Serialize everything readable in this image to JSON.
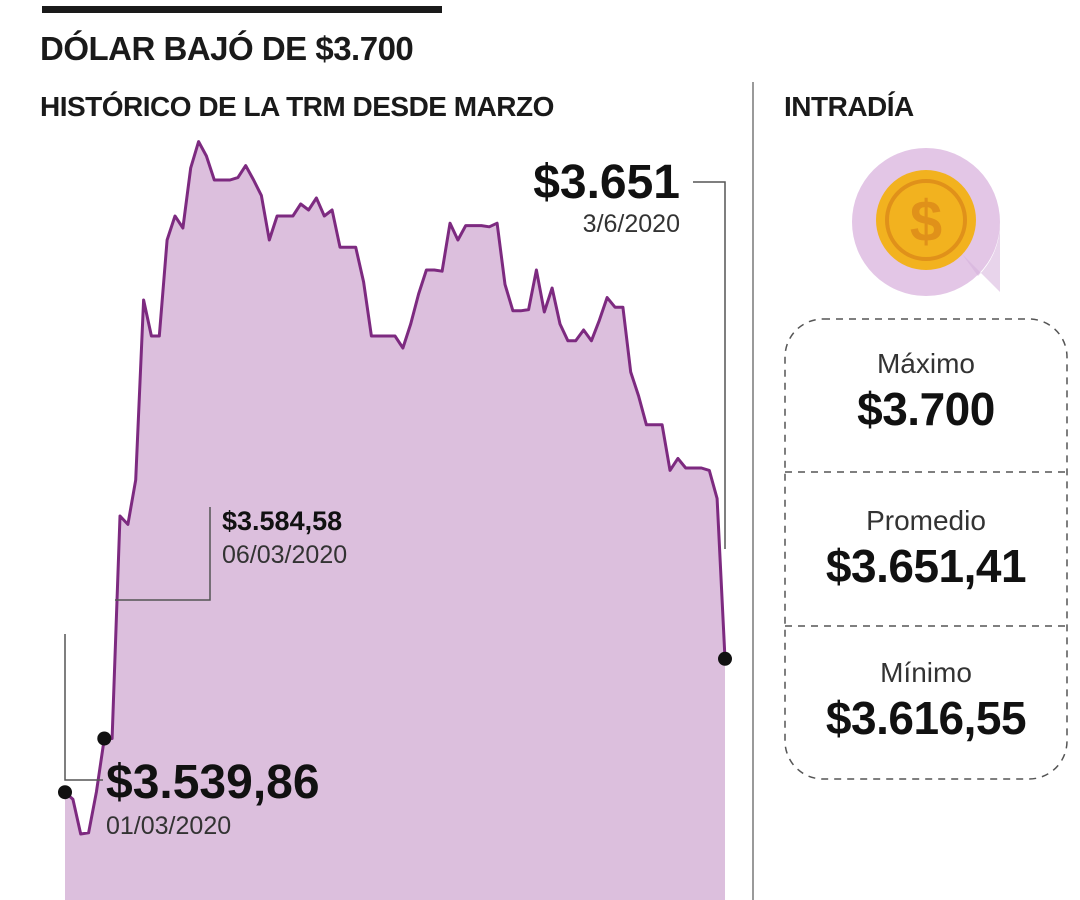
{
  "header": {
    "title": "DÓLAR BAJÓ DE $3.700",
    "subtitle": "HISTÓRICO DE LA TRM DESDE MARZO",
    "intraday_title": "INTRADÍA"
  },
  "colors": {
    "area_fill": "#dcbfdd",
    "line": "#7d2a80",
    "marker": "#111111",
    "coin_outer": "#e3c6e6",
    "coin_gold": "#f2b21f",
    "coin_gold_dark": "#e0911a"
  },
  "icons": {
    "coin": "dollar-coin-icon"
  },
  "annotations": [
    {
      "value": "$3.539,86",
      "date": "01/03/2020"
    },
    {
      "value": "$3.584,58",
      "date": "06/03/2020"
    },
    {
      "value": "$3.651",
      "date": "3/6/2020"
    }
  ],
  "intraday": {
    "items": [
      {
        "label": "Máximo",
        "value": "$3.700"
      },
      {
        "label": "Promedio",
        "value": "$3.651,41"
      },
      {
        "label": "Mínimo",
        "value": "$3.616,55"
      }
    ]
  },
  "chart_data": {
    "type": "area",
    "title": "HISTÓRICO DE LA TRM DESDE MARZO",
    "xlabel": "",
    "ylabel": "",
    "x_range": [
      "01/03/2020",
      "03/06/2020"
    ],
    "ylim": [
      3450,
      4200
    ],
    "grid": false,
    "legend": "none",
    "series": [
      {
        "values": [
          3539.86,
          3534,
          3505,
          3506,
          3540,
          3584.58,
          3584.58,
          3770,
          3763,
          3800,
          3950,
          3920,
          3920,
          4000,
          4020,
          4010,
          4060,
          4082,
          4070,
          4050,
          4050,
          4050,
          4052,
          4062,
          4050,
          4037,
          4000,
          4020,
          4020,
          4020,
          4030,
          4025,
          4035,
          4020,
          4025,
          3994,
          3994,
          3994,
          3965,
          3920,
          3920,
          3920,
          3920,
          3910,
          3930,
          3955,
          3975,
          3975,
          3974,
          4014,
          4000,
          4012,
          4012,
          4012,
          4011,
          4014,
          3963,
          3941,
          3941,
          3942,
          3975,
          3940,
          3960,
          3930,
          3916,
          3916,
          3925,
          3916,
          3933,
          3952,
          3944,
          3944,
          3890,
          3870,
          3846,
          3846,
          3846,
          3808,
          3818,
          3810,
          3810,
          3810,
          3808,
          3784.58,
          3651
        ]
      }
    ]
  }
}
